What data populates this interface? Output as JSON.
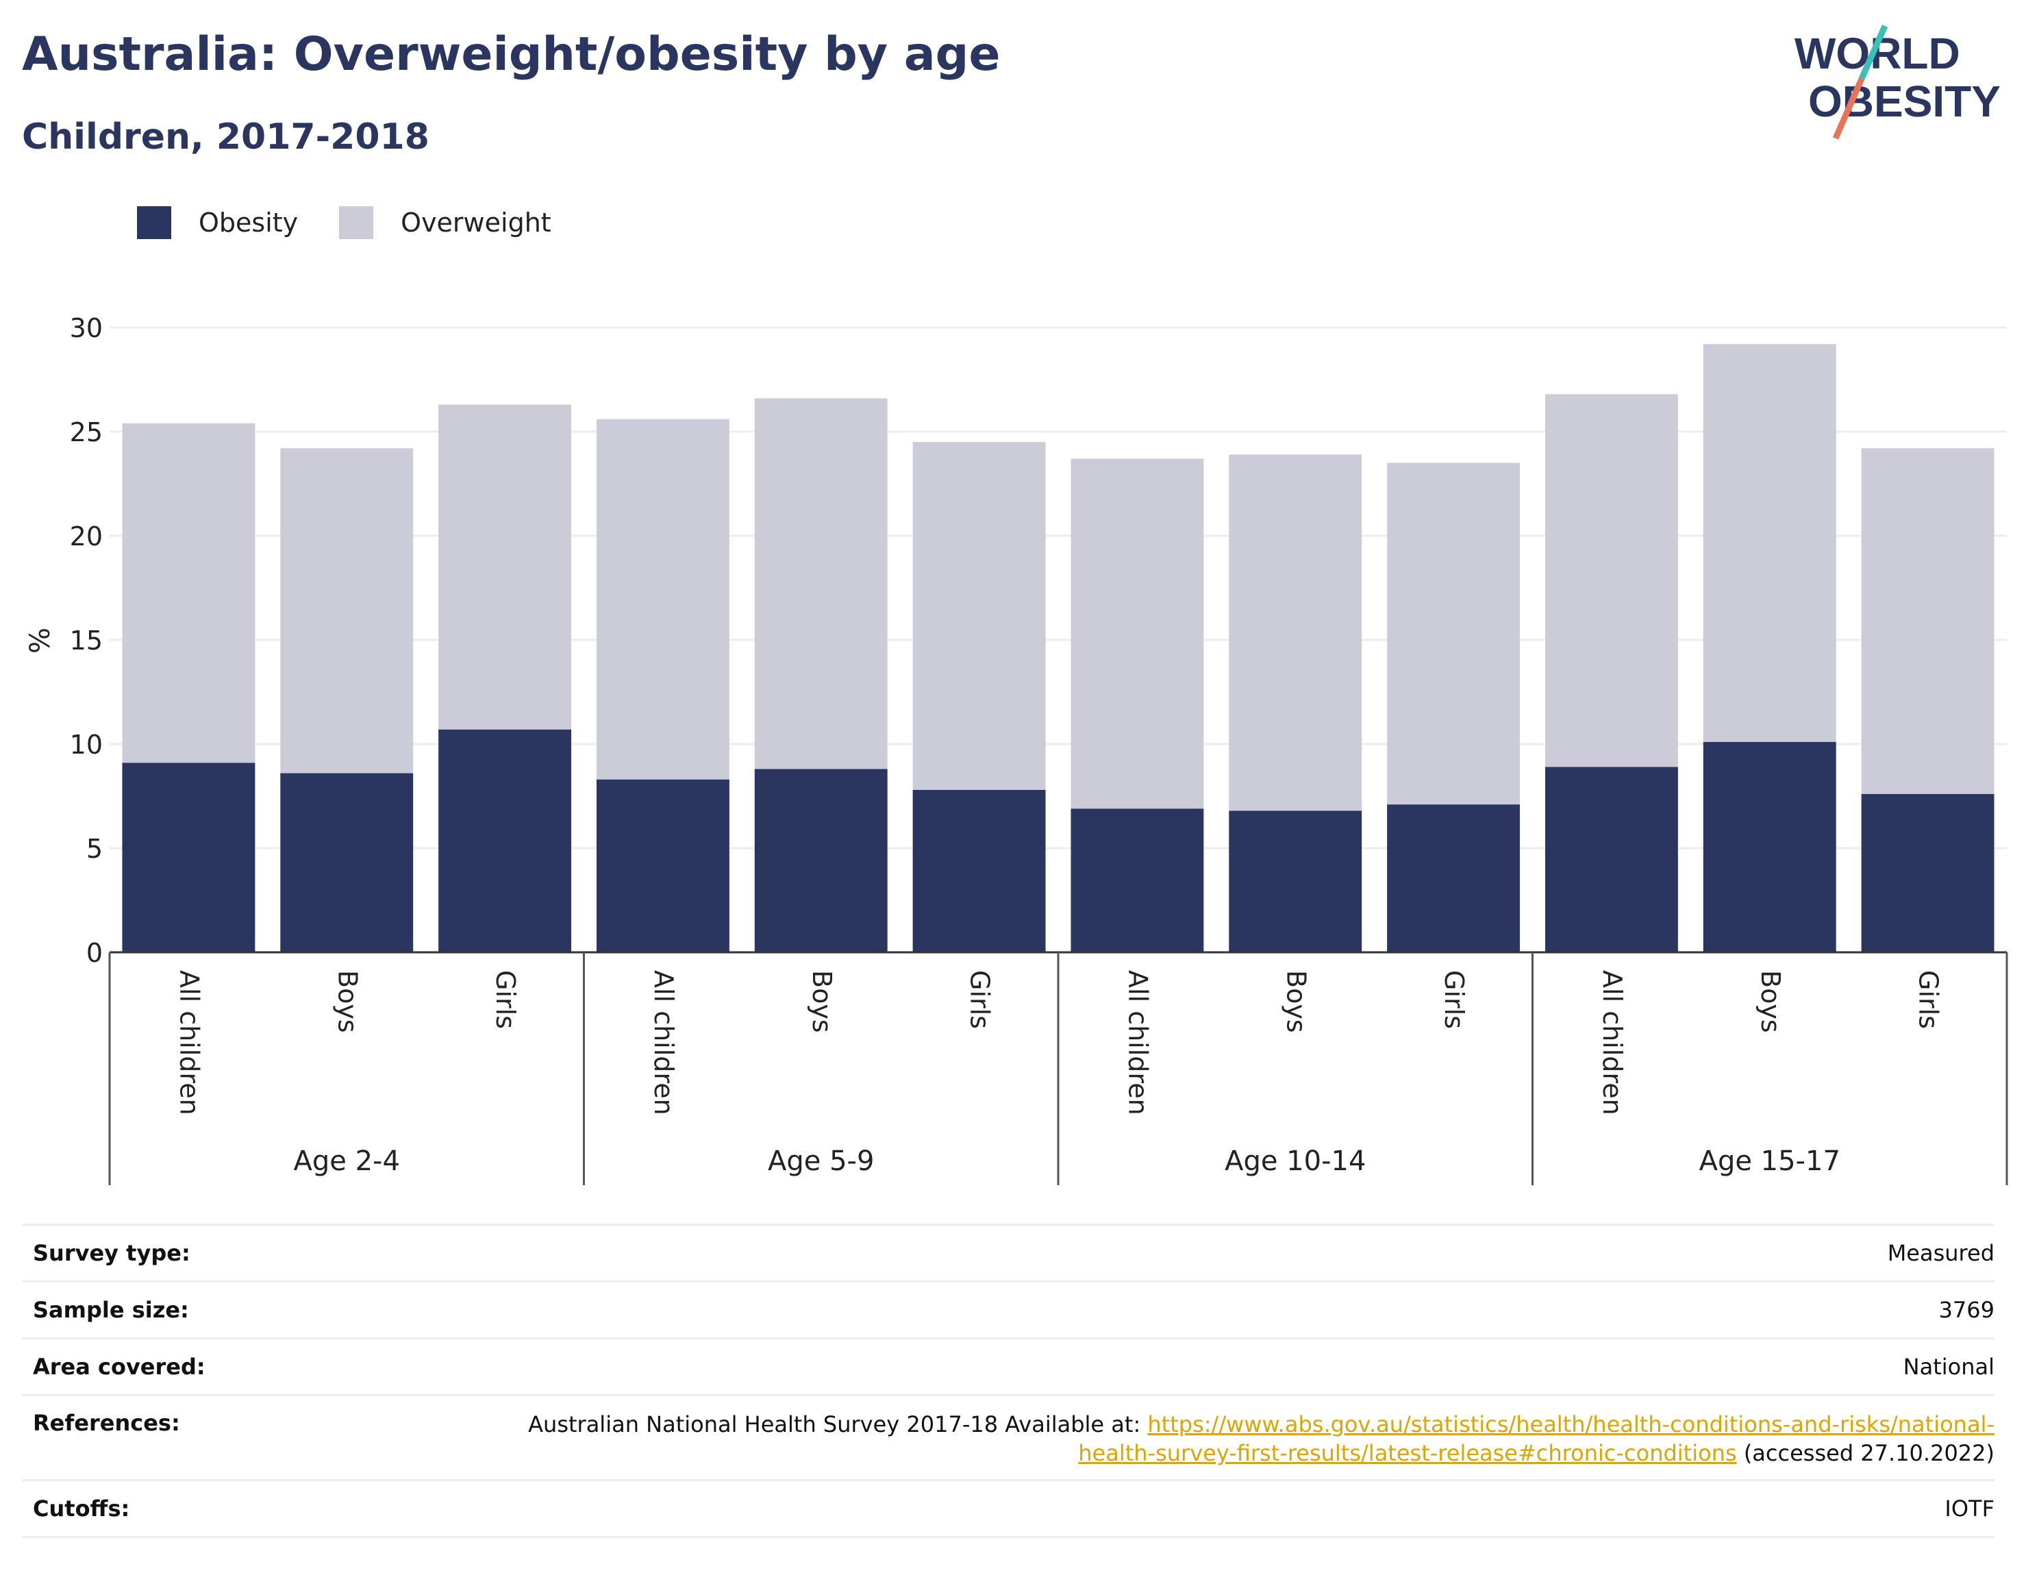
{
  "header": {
    "title": "Australia: Overweight/obesity by age",
    "subtitle": "Children, 2017-2018",
    "logo_line1": "WORLD",
    "logo_line2": "OBESITY"
  },
  "colors": {
    "obesity": "#2a3560",
    "overweight": "#cbccd8",
    "title": "#2a3560",
    "link": "#e0a400",
    "logo_teal": "#3cbfb8",
    "logo_coral": "#e8735a"
  },
  "legend": [
    {
      "label": "Obesity",
      "color": "#2a3560"
    },
    {
      "label": "Overweight",
      "color": "#cbccd8"
    }
  ],
  "chart_data": {
    "type": "bar",
    "stacked": true,
    "ylabel": "%",
    "ylim": [
      0,
      30
    ],
    "yticks": [
      0,
      5,
      10,
      15,
      20,
      25,
      30
    ],
    "grid": true,
    "legend_position": "top-left",
    "groups": [
      {
        "label": "Age 2-4",
        "categories": [
          "All children",
          "Boys",
          "Girls"
        ]
      },
      {
        "label": "Age 5-9",
        "categories": [
          "All children",
          "Boys",
          "Girls"
        ]
      },
      {
        "label": "Age 10-14",
        "categories": [
          "All children",
          "Boys",
          "Girls"
        ]
      },
      {
        "label": "Age 15-17",
        "categories": [
          "All children",
          "Boys",
          "Girls"
        ]
      }
    ],
    "series": [
      {
        "name": "Obesity",
        "values": [
          9.1,
          8.6,
          10.7,
          8.3,
          8.8,
          7.8,
          6.9,
          6.8,
          7.1,
          8.9,
          10.1,
          7.6
        ]
      },
      {
        "name": "Overweight",
        "values": [
          16.3,
          15.6,
          15.6,
          17.3,
          17.8,
          16.7,
          16.8,
          17.1,
          16.4,
          17.9,
          19.1,
          16.6
        ]
      }
    ]
  },
  "info": {
    "survey_type_label": "Survey type:",
    "survey_type_value": "Measured",
    "sample_size_label": "Sample size:",
    "sample_size_value": "3769",
    "area_label": "Area covered:",
    "area_value": "National",
    "references_label": "References:",
    "references_prefix": "Australian National Health Survey 2017-18 Available at: ",
    "references_link_line1": "https://www.abs.gov.au/statistics/health/health-conditions-and-risks/national-",
    "references_link_line2": "health-survey-first-results/latest-release#chronic-conditions",
    "references_suffix": " (accessed 27.10.2022)",
    "cutoffs_label": "Cutoffs:",
    "cutoffs_value": "IOTF"
  }
}
